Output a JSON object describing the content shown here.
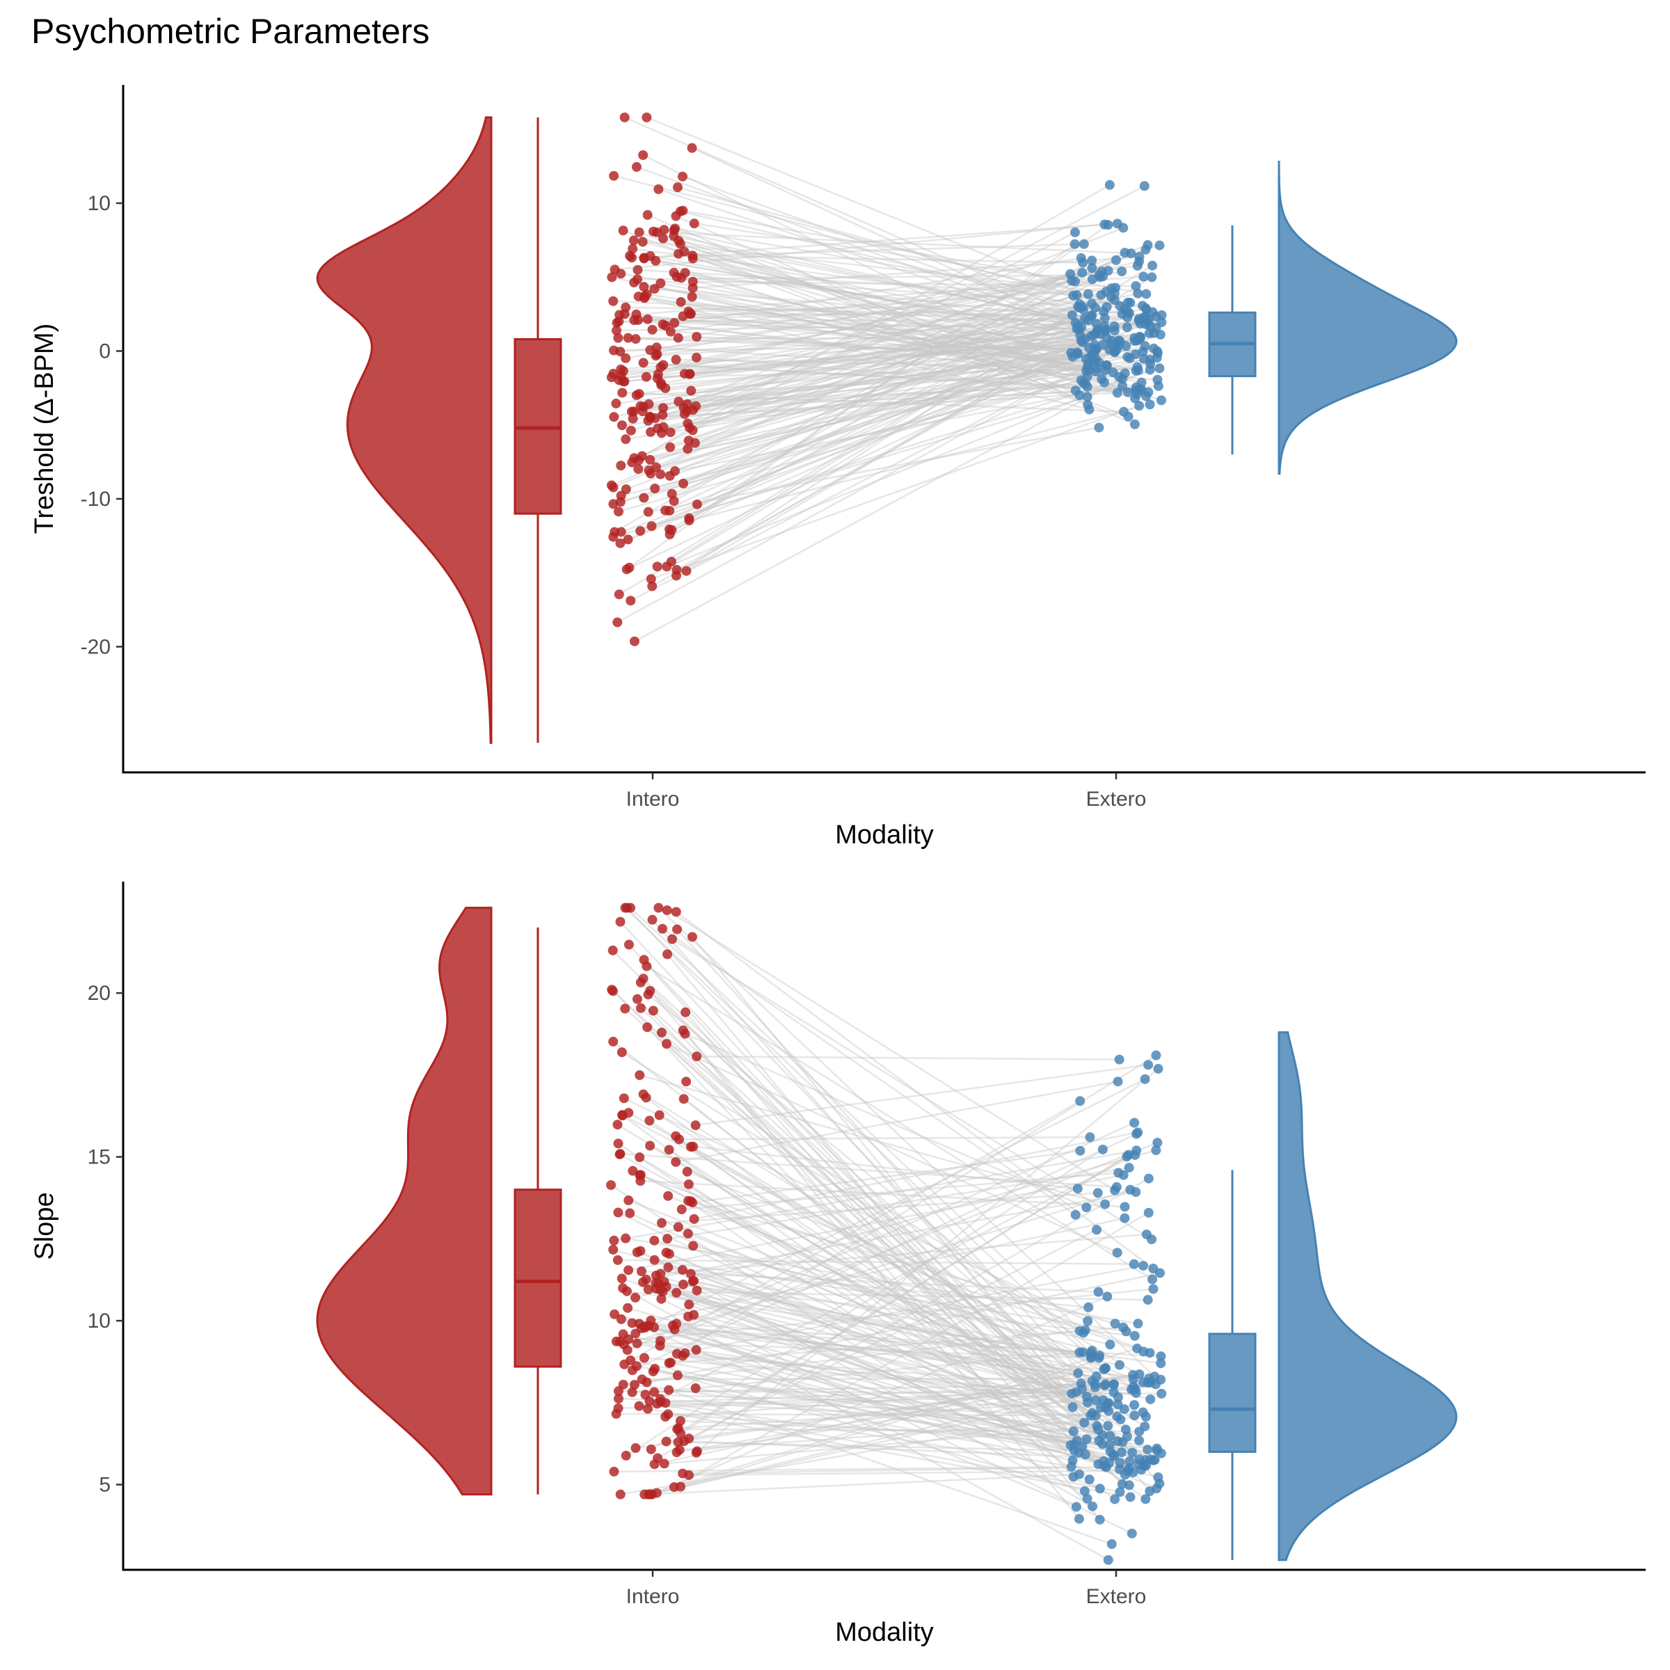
{
  "figure_title": "Psychometric Parameters",
  "colors": {
    "intero": "#b22222",
    "extero": "#4682b4",
    "links": "#c8c8c8"
  },
  "chart_data": [
    {
      "type": "raincloud",
      "title": "",
      "xlabel": "Modality",
      "ylabel": "Treshold (Δ-BPM)",
      "categories": [
        "Intero",
        "Extero"
      ],
      "ylim": [
        -28.5,
        18
      ],
      "yticks": [
        -20,
        -10,
        0,
        10
      ],
      "ytick_labels": [
        "-20",
        "-10",
        "0",
        "10"
      ],
      "grid": false,
      "series": [
        {
          "name": "Intero",
          "box": {
            "min": -26.5,
            "q1": -11,
            "median": -5.2,
            "q3": 0.8,
            "max": 15.8
          },
          "density": {
            "ymin": -26.5,
            "ymax": 15.8,
            "centers": [
              -5,
              5,
              8
            ],
            "sds": [
              6.5,
              2.3,
              3.5
            ],
            "weights": [
              0.7,
              0.16,
              0.14
            ]
          }
        },
        {
          "name": "Extero",
          "box": {
            "min": -7,
            "q1": -1.7,
            "median": 0.5,
            "q3": 2.6,
            "max": 8.5
          },
          "density": {
            "ymin": -8.3,
            "ymax": 12.8,
            "centers": [
              0.5,
              5
            ],
            "sds": [
              2.6,
              2.0
            ],
            "weights": [
              0.85,
              0.15
            ]
          }
        }
      ],
      "n_subjects": 210,
      "seed": 7
    },
    {
      "type": "raincloud",
      "title": "",
      "xlabel": "Modality",
      "ylabel": "Slope",
      "categories": [
        "Intero",
        "Extero"
      ],
      "ylim": [
        2.4,
        23.4
      ],
      "yticks": [
        5,
        10,
        15,
        20
      ],
      "ytick_labels": [
        "5",
        "10",
        "15",
        "20"
      ],
      "grid": false,
      "series": [
        {
          "name": "Intero",
          "box": {
            "min": 4.7,
            "q1": 8.6,
            "median": 11.2,
            "q3": 14,
            "max": 22
          },
          "density": {
            "ymin": 4.7,
            "ymax": 22.6,
            "centers": [
              10,
              16.5,
              21
            ],
            "sds": [
              2.8,
              1.8,
              1.4
            ],
            "weights": [
              0.72,
              0.18,
              0.1
            ]
          }
        },
        {
          "name": "Extero",
          "box": {
            "min": 2.7,
            "q1": 6,
            "median": 7.3,
            "q3": 9.6,
            "max": 14.6
          },
          "density": {
            "ymin": 2.7,
            "ymax": 18.8,
            "centers": [
              7,
              12,
              17
            ],
            "sds": [
              1.7,
              2.5,
              1.5
            ],
            "weights": [
              0.72,
              0.22,
              0.06
            ]
          }
        }
      ],
      "n_subjects": 210,
      "seed": 11
    }
  ]
}
